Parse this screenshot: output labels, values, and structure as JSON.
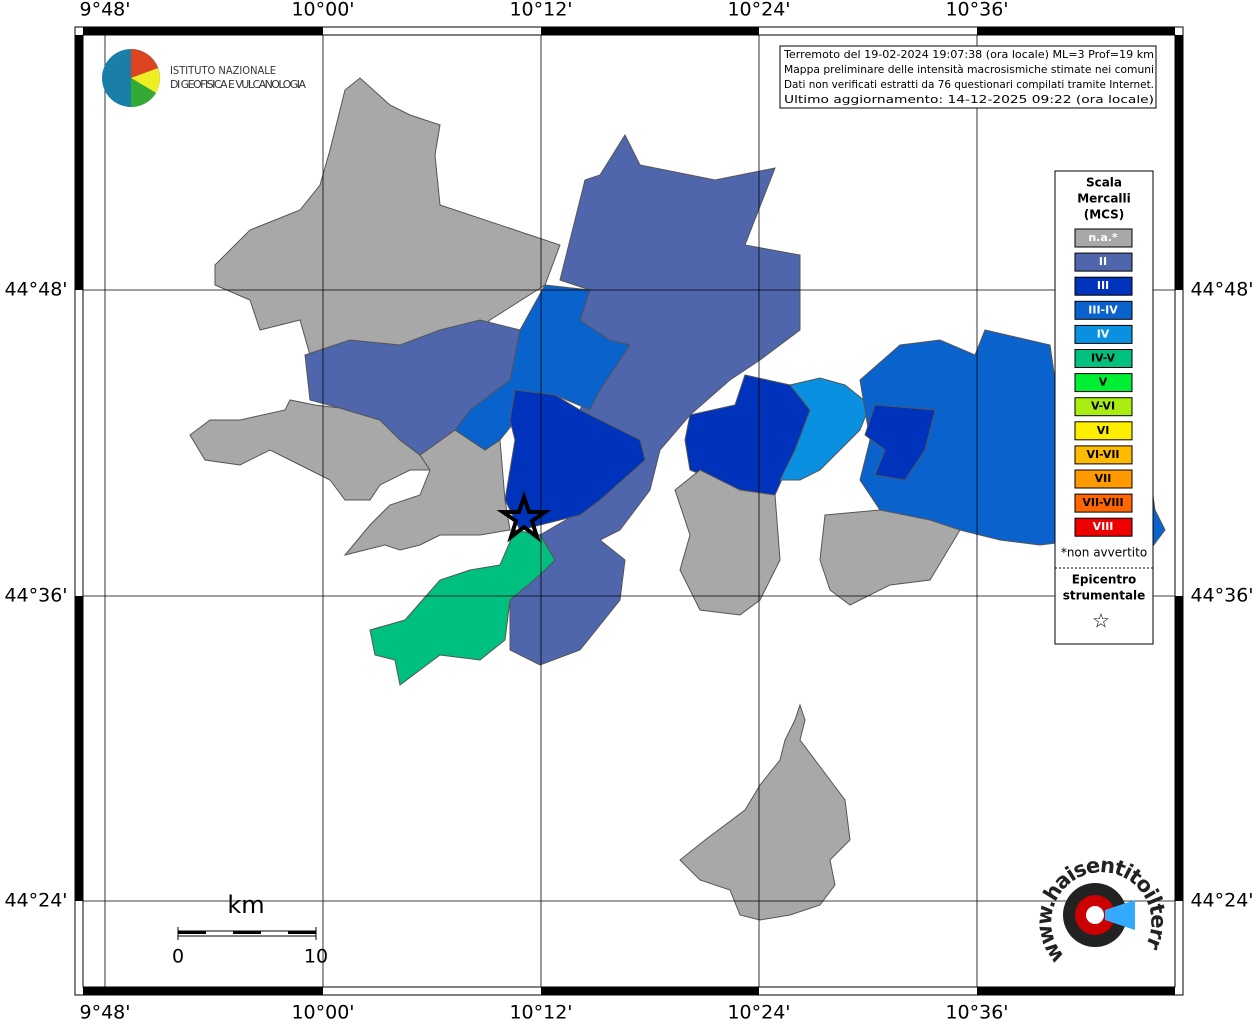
{
  "map": {
    "lon_labels": [
      "9°48'",
      "10°00'",
      "10°12'",
      "10°24'",
      "10°36'"
    ],
    "lat_labels": [
      "44°48'",
      "44°36'",
      "44°24'"
    ],
    "logo": {
      "line1": "ISTITUTO NAZIONALE",
      "line2": "DI GEOFISICA E VULCANOLOGIA"
    },
    "info": [
      "Terremoto del 19-02-2024 19:07:38 (ora locale) ML=3 Prof=19 km",
      "Mappa preliminare delle intensità macrosismiche stimate nei comuni",
      "Dati non verificati estratti da 76 questionari compilati tramite Internet.",
      "Ultimo aggiornamento: 14-12-2025 09:22 (ora locale)"
    ],
    "legend": {
      "title": [
        "Scala",
        "Mercalli",
        "(MCS)"
      ],
      "items": [
        {
          "label": "n.a.*",
          "color": "#a8a8a8",
          "text_color": "#ffffff"
        },
        {
          "label": "II",
          "color": "#4f66ac",
          "text_color": "#ffffff"
        },
        {
          "label": "III",
          "color": "#0033bb",
          "text_color": "#ffffff"
        },
        {
          "label": "III-IV",
          "color": "#0a62cc",
          "text_color": "#ffffff"
        },
        {
          "label": "IV",
          "color": "#0a90e0",
          "text_color": "#ffffff"
        },
        {
          "label": "IV-V",
          "color": "#00c080",
          "text_color": "#000000"
        },
        {
          "label": "V",
          "color": "#00ee33",
          "text_color": "#000000"
        },
        {
          "label": "V-VI",
          "color": "#aaee11",
          "text_color": "#000000"
        },
        {
          "label": "VI",
          "color": "#ffee00",
          "text_color": "#000000"
        },
        {
          "label": "VI-VII",
          "color": "#ffbb00",
          "text_color": "#000000"
        },
        {
          "label": "VII",
          "color": "#ff9900",
          "text_color": "#000000"
        },
        {
          "label": "VII-VIII",
          "color": "#ff6600",
          "text_color": "#000000"
        },
        {
          "label": "VIII",
          "color": "#ee0000",
          "text_color": "#ffffff"
        }
      ],
      "note": "*non avvertito",
      "epicenter": [
        "Epicentro",
        "strumentale"
      ],
      "star": "☆"
    },
    "scale": {
      "unit": "km",
      "start": 0,
      "end": 10
    },
    "site": "www.haisentitoilterremoto.it"
  }
}
